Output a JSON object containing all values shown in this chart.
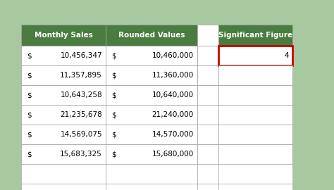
{
  "background_color": "#a8c8a0",
  "header_bg": "#4a7c3f",
  "header_text_color": "#ffffff",
  "cell_bg": "#ffffff",
  "cell_text_color": "#000000",
  "grid_color": "#a0a0a0",
  "red_border_color": "#cc0000",
  "monthly_sales_header": "Monthly Sales",
  "rounded_values_header": "Rounded Values",
  "sig_fig_header": "Significant Figure",
  "sig_fig_value": "4",
  "monthly_sales": [
    "$ 10,456,347",
    "$ 11,357,895",
    "$ 10,643,258",
    "$ 21,235,678",
    "$ 14,569,075",
    "$ 15,683,325"
  ],
  "rounded_values": [
    "$     10,460,000",
    "$     11,360,000",
    "$     10,640,000",
    "$     21,240,000",
    "$     14,570,000",
    "$     15,680,000"
  ]
}
